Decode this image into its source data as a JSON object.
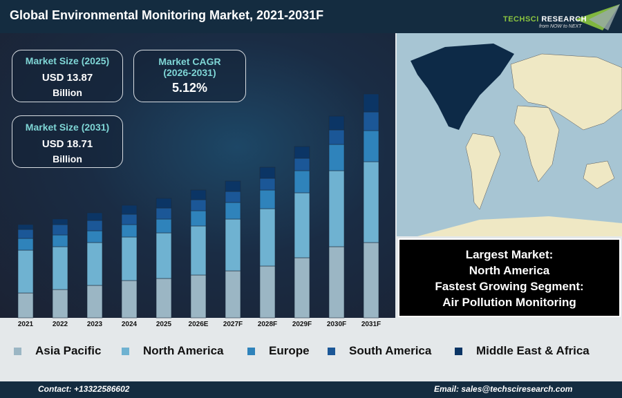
{
  "header": {
    "title": "Global Environmental Monitoring Market, 2021-2031F",
    "logo_text": "TechSci Research",
    "logo_tagline": "from NOW to NEXT"
  },
  "cards": {
    "size2025": {
      "label": "Market Size (2025)",
      "value": "USD 13.87",
      "unit": "Billion"
    },
    "cagr": {
      "label": "Market CAGR",
      "period": "(2026-2031)",
      "value": "5.12%"
    },
    "size2031": {
      "label": "Market Size (2031)",
      "value": "USD 18.71",
      "unit": "Billion"
    }
  },
  "info": {
    "line1": "Largest Market:",
    "line2": "North America",
    "line3": "Fastest Growing Segment:",
    "line4": "Air Pollution Monitoring"
  },
  "chart_data": {
    "type": "bar",
    "stacked": true,
    "grid": false,
    "legend_placement": "bottom",
    "categories": [
      "2021",
      "2022",
      "2023",
      "2024",
      "2025",
      "2026E",
      "2027F",
      "2028F",
      "2029F",
      "2030F",
      "2031F"
    ],
    "series": [
      {
        "name": "Asia Pacific",
        "color": "#9bb6c4",
        "values": [
          36,
          41,
          47,
          54,
          57,
          62,
          68,
          75,
          87,
          103,
          109
        ]
      },
      {
        "name": "North America",
        "color": "#6fb2d1",
        "values": [
          62,
          62,
          62,
          63,
          66,
          71,
          75,
          83,
          94,
          110,
          117
        ]
      },
      {
        "name": "Europe",
        "color": "#2f83bb",
        "values": [
          17,
          17,
          17,
          18,
          20,
          22,
          24,
          27,
          32,
          38,
          45
        ]
      },
      {
        "name": "South America",
        "color": "#1b5797",
        "values": [
          13,
          15,
          15,
          15,
          16,
          16,
          16,
          17,
          18,
          21,
          27
        ]
      },
      {
        "name": "Middle East & Africa",
        "color": "#0b3565",
        "values": [
          7,
          8,
          11,
          13,
          14,
          14,
          15,
          16,
          17,
          20,
          26
        ]
      }
    ]
  },
  "footer": {
    "contact": "Contact: +13322586602",
    "email": "Email: sales@techsciresearch.com"
  }
}
